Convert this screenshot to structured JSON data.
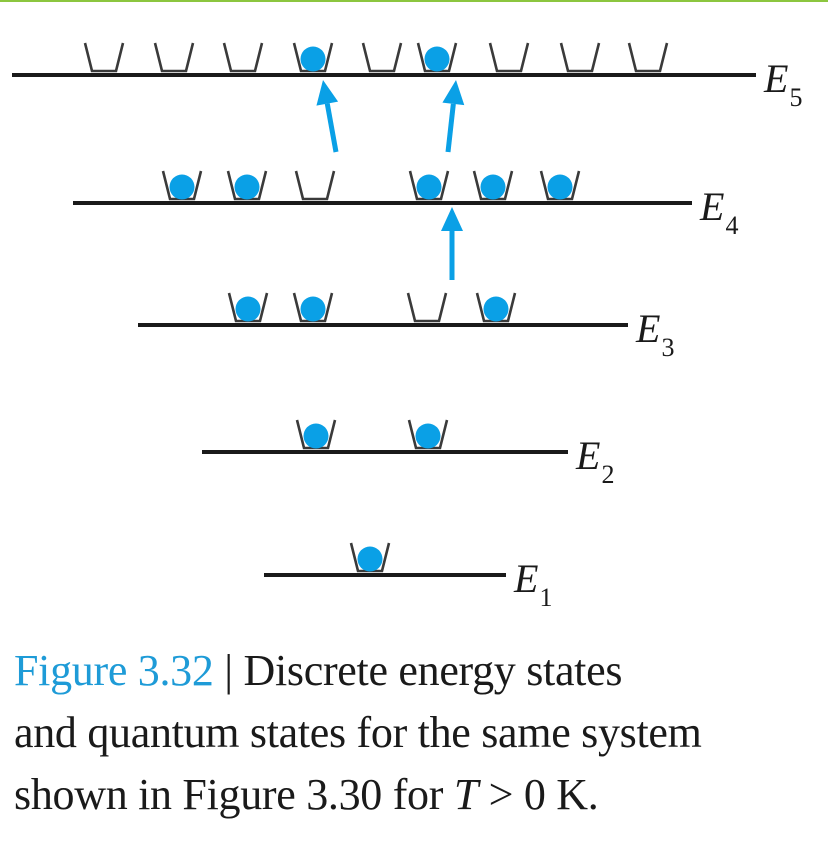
{
  "colors": {
    "electron": "#0aa0e6",
    "arrow": "#0aa0e6",
    "line": "#1a1a1a",
    "figure_label": "#1e9bd7",
    "top_rule": "#8cc63f"
  },
  "levels": [
    {
      "name": "E",
      "sub": "5",
      "states": [
        0,
        0,
        0,
        1,
        0,
        1,
        0,
        0,
        0
      ]
    },
    {
      "name": "E",
      "sub": "4",
      "states": [
        1,
        1,
        0,
        1,
        1,
        1
      ]
    },
    {
      "name": "E",
      "sub": "3",
      "states": [
        1,
        1,
        0,
        1
      ]
    },
    {
      "name": "E",
      "sub": "2",
      "states": [
        1,
        1
      ]
    },
    {
      "name": "E",
      "sub": "1",
      "states": [
        1
      ]
    }
  ],
  "transitions": [
    {
      "from_level": "E4",
      "from_state": 2,
      "to_level": "E5",
      "to_state": 3
    },
    {
      "from_level": "E4",
      "from_state": 3,
      "to_level": "E5",
      "to_state": 5
    },
    {
      "from_level": "E3",
      "from_state": 2,
      "to_level": "E4",
      "to_state": 3
    }
  ],
  "caption": {
    "figure_label": "Figure 3.32",
    "separator": " | ",
    "line1_rest": "Discrete energy states",
    "line2": "and quantum states for the same system",
    "line3_prefix": "shown in Figure 3.30 for ",
    "line3_var": "T",
    "line3_suffix": " > 0 K."
  }
}
